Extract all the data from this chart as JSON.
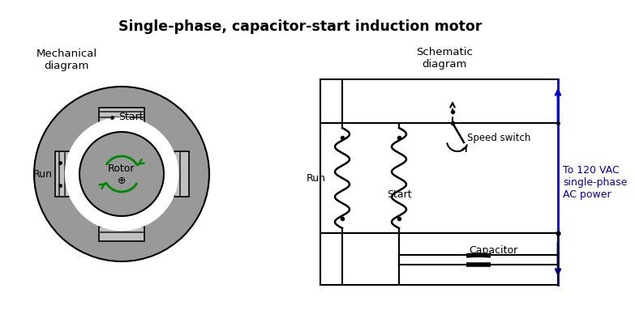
{
  "title": "Single-phase, capacitor-start induction motor",
  "title_fontsize": 12.5,
  "bg_color": "#ffffff",
  "left_label": "Mechanical\ndiagram",
  "right_label": "Schematic\ndiagram",
  "gray_mid": "#999999",
  "gray_light": "#c0c0c0",
  "stripe_color": "#333333",
  "green_color": "#008800",
  "blue_color": "#0000cc",
  "black": "#000000",
  "run_label": "Run",
  "start_label": "Start",
  "rotor_label": "Rotor",
  "speed_switch_label": "Speed switch",
  "capacitor_label": "Capacitor",
  "power_label": "To 120 VAC\nsingle-phase\nAC power"
}
